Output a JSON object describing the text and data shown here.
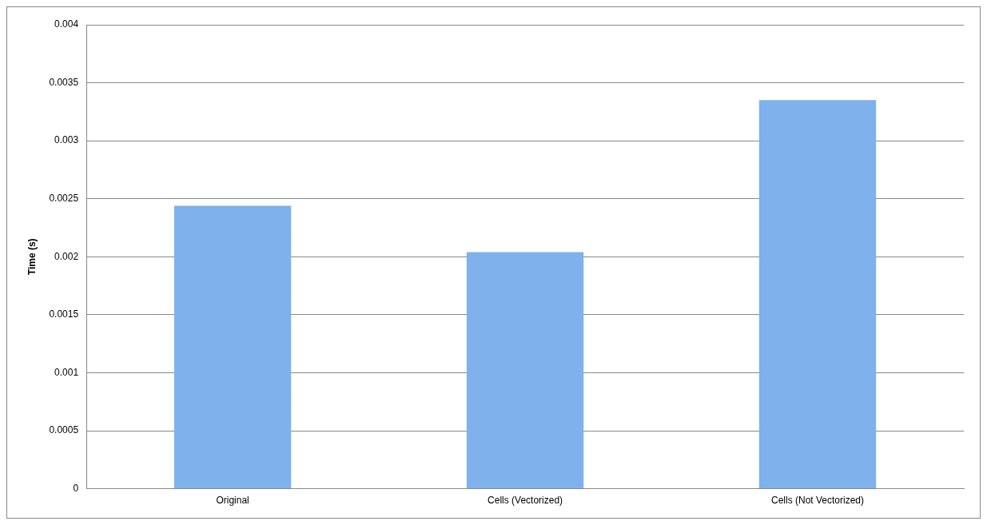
{
  "chart_data": {
    "type": "bar",
    "ylabel": "Time (s)",
    "categories": [
      "Original",
      "Cells (Vectorized)",
      "Cells (Not Vectorized)"
    ],
    "values": [
      0.00244,
      0.00204,
      0.00335
    ],
    "color": "#7fb2ec",
    "ylim": [
      0,
      0.004
    ],
    "yticks": [
      0,
      0.0005,
      0.001,
      0.0015,
      0.002,
      0.0025,
      0.003,
      0.0035,
      0.004
    ],
    "grid": "y",
    "legend": false
  }
}
